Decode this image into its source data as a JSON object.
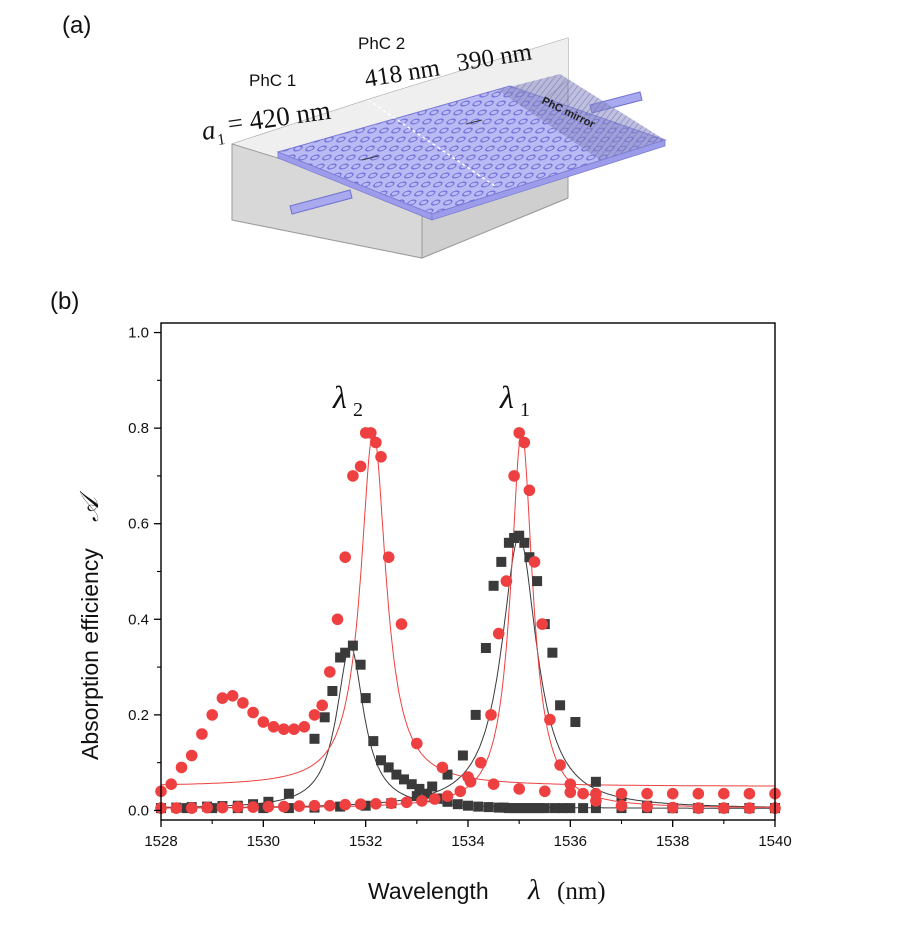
{
  "panel_a": {
    "label": "(a)",
    "phc1_label": "PhC 1",
    "phc2_label": "PhC 2",
    "a1_symbol": "a",
    "a1_sub": "1",
    "a1_value": "= 420 nm",
    "lattice_2a": "418 nm",
    "lattice_2b": "390 nm",
    "mirror_label": "PhC mirror",
    "colors": {
      "slab": "#8f8fe8",
      "box": "#cfcfcf",
      "mirror": "#7a7ab0"
    }
  },
  "panel_b": {
    "label": "(b)",
    "xlabel_text": "Wavelength",
    "xlabel_symbol": "λ",
    "xlabel_unit": "(nm)",
    "ylabel_text": "Absorption efficiency",
    "ylabel_symbol": "𝒜",
    "peak2_symbol": "λ",
    "peak2_sub": "2",
    "peak1_symbol": "λ",
    "peak1_sub": "1"
  },
  "chart_data": {
    "type": "scatter",
    "xlabel": "Wavelength λ (nm)",
    "ylabel": "Absorption efficiency 𝒜",
    "xlim": [
      1528,
      1540
    ],
    "ylim": [
      -0.02,
      1.02
    ],
    "xticks": [
      1528,
      1530,
      1532,
      1534,
      1536,
      1538,
      1540
    ],
    "yticks": [
      0.0,
      0.2,
      0.4,
      0.6,
      0.8,
      1.0
    ],
    "ytick_labels": [
      "0.0",
      "0.2",
      "0.4",
      "0.6",
      "0.8",
      "1.0"
    ],
    "grid": false,
    "annotations": [
      {
        "text": "λ2",
        "x": 1531.8,
        "y": 0.87
      },
      {
        "text": "λ1",
        "x": 1534.8,
        "y": 0.87
      }
    ],
    "series": [
      {
        "marker": "square",
        "color": "#3a3a3a",
        "x": [
          1528,
          1528.3,
          1528.6,
          1528.9,
          1529.2,
          1529.5,
          1529.8,
          1530.1,
          1530.5,
          1531,
          1531.2,
          1531.35,
          1531.5,
          1531.6,
          1531.75,
          1531.9,
          1532,
          1532.15,
          1532.3,
          1532.45,
          1532.6,
          1532.75,
          1532.9,
          1533.05,
          1533.2,
          1533.4,
          1533.6,
          1533.8,
          1534,
          1534.2,
          1534.4,
          1534.6,
          1534.7,
          1534.8,
          1534.9,
          1535,
          1535.1,
          1535.2,
          1535.3,
          1535.4,
          1535.5,
          1535.7,
          1535.85,
          1536,
          1536.25,
          1536.5,
          1537,
          1537.5,
          1538,
          1538.5,
          1539,
          1539.5,
          1540
        ],
        "y": [
          0.005,
          0.006,
          0.007,
          0.008,
          0.009,
          0.01,
          0.013,
          0.018,
          0.035,
          0.15,
          0.195,
          0.25,
          0.32,
          0.33,
          0.345,
          0.305,
          0.235,
          0.145,
          0.105,
          0.09,
          0.075,
          0.065,
          0.055,
          0.045,
          0.035,
          0.025,
          0.018,
          0.013,
          0.01,
          0.008,
          0.007,
          0.006,
          0.006,
          0.005,
          0.005,
          0.005,
          0.005,
          0.005,
          0.005,
          0.005,
          0.005,
          0.005,
          0.005,
          0.005,
          0.005,
          0.005,
          0.005,
          0.005,
          0.005,
          0.005,
          0.005,
          0.005,
          0.005
        ]
      },
      {
        "marker": "square",
        "color": "#3a3a3a",
        "x": [
          1528,
          1528.5,
          1529,
          1529.5,
          1530,
          1530.5,
          1531,
          1531.5,
          1532,
          1532.5,
          1533,
          1533.3,
          1533.6,
          1533.9,
          1534.15,
          1534.35,
          1534.5,
          1534.65,
          1534.8,
          1534.9,
          1535,
          1535.1,
          1535.2,
          1535.35,
          1535.5,
          1535.65,
          1535.8,
          1536.1,
          1536.5,
          1537,
          1537.5,
          1538,
          1538.5,
          1539,
          1539.5,
          1540
        ],
        "y": [
          0.005,
          0.005,
          0.005,
          0.005,
          0.005,
          0.005,
          0.006,
          0.008,
          0.01,
          0.015,
          0.03,
          0.05,
          0.075,
          0.115,
          0.2,
          0.34,
          0.47,
          0.52,
          0.56,
          0.57,
          0.575,
          0.56,
          0.53,
          0.48,
          0.39,
          0.33,
          0.22,
          0.185,
          0.06,
          0.03,
          0.01,
          0.005,
          0.005,
          0.005,
          0.005,
          0.005
        ]
      },
      {
        "marker": "circle",
        "color": "#ee4040",
        "x": [
          1528,
          1528.2,
          1528.4,
          1528.6,
          1528.8,
          1529,
          1529.2,
          1529.4,
          1529.6,
          1529.8,
          1530,
          1530.2,
          1530.4,
          1530.6,
          1530.8,
          1531,
          1531.15,
          1531.3,
          1531.45,
          1531.6,
          1531.75,
          1531.9,
          1532,
          1532.1,
          1532.2,
          1532.3,
          1532.45,
          1532.7,
          1533,
          1533.5,
          1534,
          1534.5,
          1535,
          1535.5,
          1536,
          1536.5,
          1537,
          1537.5,
          1538,
          1538.5,
          1539,
          1539.5,
          1540
        ],
        "y": [
          0.04,
          0.055,
          0.09,
          0.115,
          0.16,
          0.2,
          0.235,
          0.24,
          0.225,
          0.205,
          0.185,
          0.175,
          0.17,
          0.17,
          0.175,
          0.2,
          0.22,
          0.29,
          0.4,
          0.53,
          0.7,
          0.72,
          0.79,
          0.79,
          0.77,
          0.74,
          0.53,
          0.39,
          0.14,
          0.09,
          0.07,
          0.055,
          0.045,
          0.04,
          0.038,
          0.035,
          0.035,
          0.035,
          0.035,
          0.035,
          0.035,
          0.035,
          0.035
        ]
      },
      {
        "marker": "circle",
        "color": "#ee4040",
        "x": [
          1528,
          1528.3,
          1528.6,
          1528.9,
          1529.2,
          1529.5,
          1529.8,
          1530.1,
          1530.4,
          1530.7,
          1531,
          1531.3,
          1531.6,
          1531.9,
          1532.2,
          1532.5,
          1532.8,
          1533.1,
          1533.35,
          1533.6,
          1533.85,
          1534.05,
          1534.25,
          1534.45,
          1534.6,
          1534.75,
          1534.9,
          1535,
          1535.1,
          1535.2,
          1535.3,
          1535.45,
          1535.6,
          1535.8,
          1536,
          1536.25,
          1536.5,
          1537,
          1537.5,
          1538,
          1538.5,
          1539,
          1539.5,
          1540
        ],
        "y": [
          0.005,
          0.005,
          0.005,
          0.006,
          0.006,
          0.007,
          0.007,
          0.008,
          0.008,
          0.009,
          0.01,
          0.01,
          0.012,
          0.013,
          0.014,
          0.015,
          0.017,
          0.02,
          0.024,
          0.03,
          0.04,
          0.06,
          0.1,
          0.2,
          0.37,
          0.48,
          0.7,
          0.79,
          0.77,
          0.67,
          0.52,
          0.39,
          0.19,
          0.095,
          0.055,
          0.035,
          0.02,
          0.01,
          0.008,
          0.006,
          0.005,
          0.005,
          0.005,
          0.005
        ]
      }
    ],
    "fits": [
      {
        "color": "#3a3a3a",
        "type": "lorentzian",
        "center": 1531.7,
        "amplitude": 0.34,
        "hwhm": 0.32,
        "offset": 0.004
      },
      {
        "color": "#3a3a3a",
        "type": "lorentzian",
        "center": 1535.0,
        "amplitude": 0.57,
        "hwhm": 0.42,
        "offset": 0.003
      },
      {
        "color": "#ee4040",
        "type": "lorentzian",
        "center": 1532.15,
        "amplitude": 0.745,
        "hwhm": 0.3,
        "offset": 0.05
      },
      {
        "color": "#ee4040",
        "type": "lorentzian",
        "center": 1535.05,
        "amplitude": 0.79,
        "hwhm": 0.26,
        "offset": 0.004
      }
    ]
  }
}
